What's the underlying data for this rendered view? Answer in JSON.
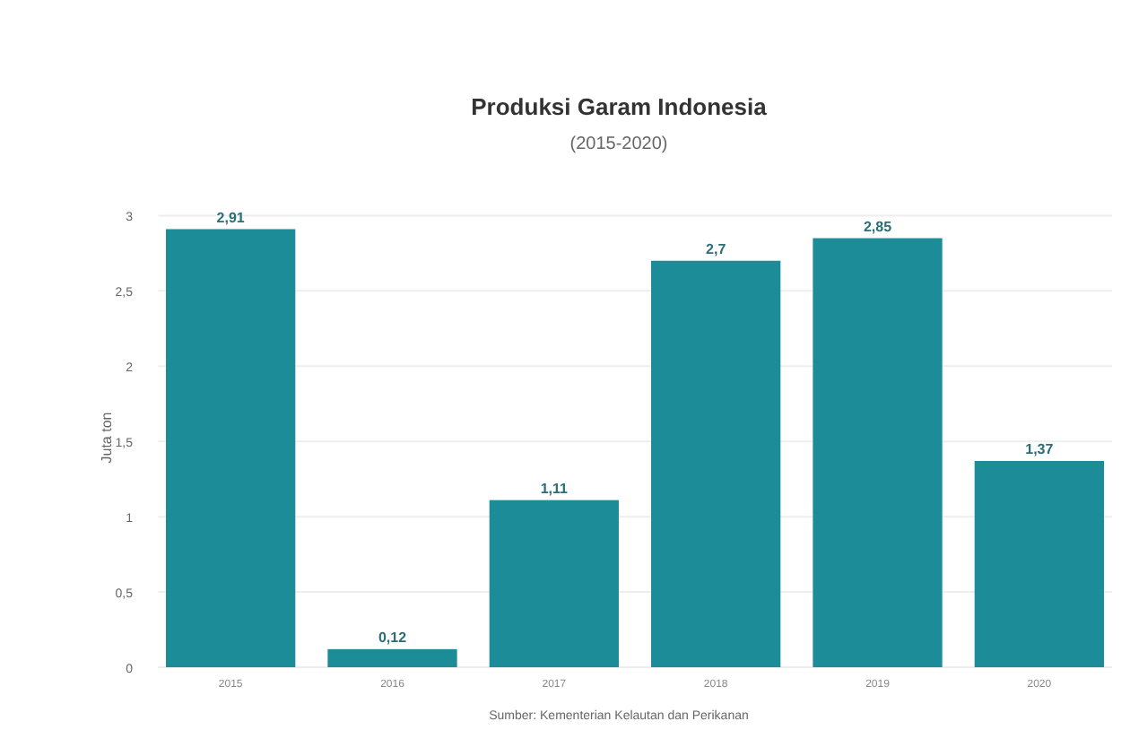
{
  "chart_data": {
    "type": "bar",
    "title": "Produksi Garam Indonesia",
    "subtitle": "(2015-2020)",
    "ylabel": "Juta ton",
    "categories": [
      "2015",
      "2016",
      "2017",
      "2018",
      "2019",
      "2020"
    ],
    "values": [
      2.91,
      0.12,
      1.11,
      2.7,
      2.85,
      1.37
    ],
    "value_labels": [
      "2,91",
      "0,12",
      "1,11",
      "2,7",
      "2,85",
      "1,37"
    ],
    "color": "#1b8c98",
    "ylim": [
      0,
      3.05
    ],
    "yticks": [
      0,
      {
        "value": 0.5,
        "label": "0,5"
      },
      1,
      {
        "value": 1.5,
        "label": "1,5"
      },
      2,
      {
        "value": 2.5,
        "label": "2,5"
      },
      3
    ],
    "grid": "y",
    "annotations": [
      "Sumber: Kementerian Kelautan dan Perikanan"
    ]
  }
}
